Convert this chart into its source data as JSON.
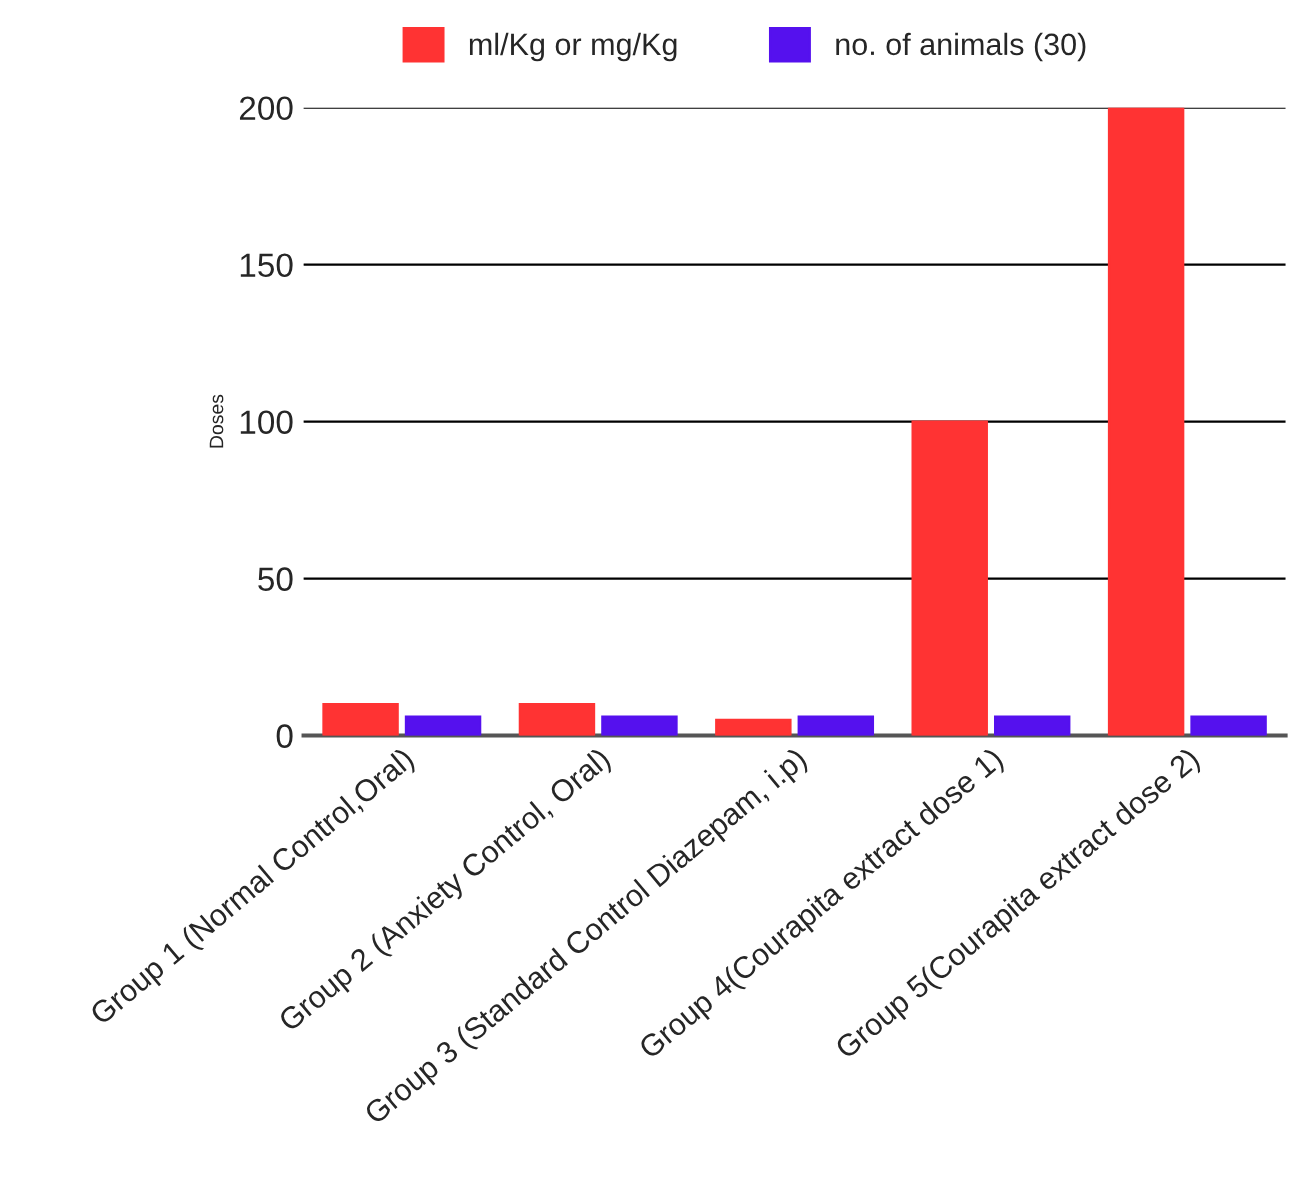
{
  "chart_data": {
    "type": "bar",
    "ylabel": "Doses",
    "categories": [
      "Group 1 (Normal Control,Oral)",
      "Group 2 (Anxiety Control, Oral)",
      "Group 3 (Standard Control Diazepam, i.p)",
      "Group 4(Courapita extract dose 1)",
      "Group 5(Courapita extract dose 2)"
    ],
    "series": [
      {
        "name": "ml/Kg or mg/Kg",
        "color": "#ff3333",
        "values": [
          10,
          10,
          5,
          100,
          200
        ]
      },
      {
        "name": "no. of animals (30)",
        "color": "#5511ee",
        "values": [
          6,
          6,
          6,
          6,
          6
        ]
      }
    ],
    "ylim": [
      0,
      200
    ],
    "yticks": [
      0,
      50,
      100,
      150,
      200
    ],
    "grid": "y",
    "legend": "top"
  }
}
